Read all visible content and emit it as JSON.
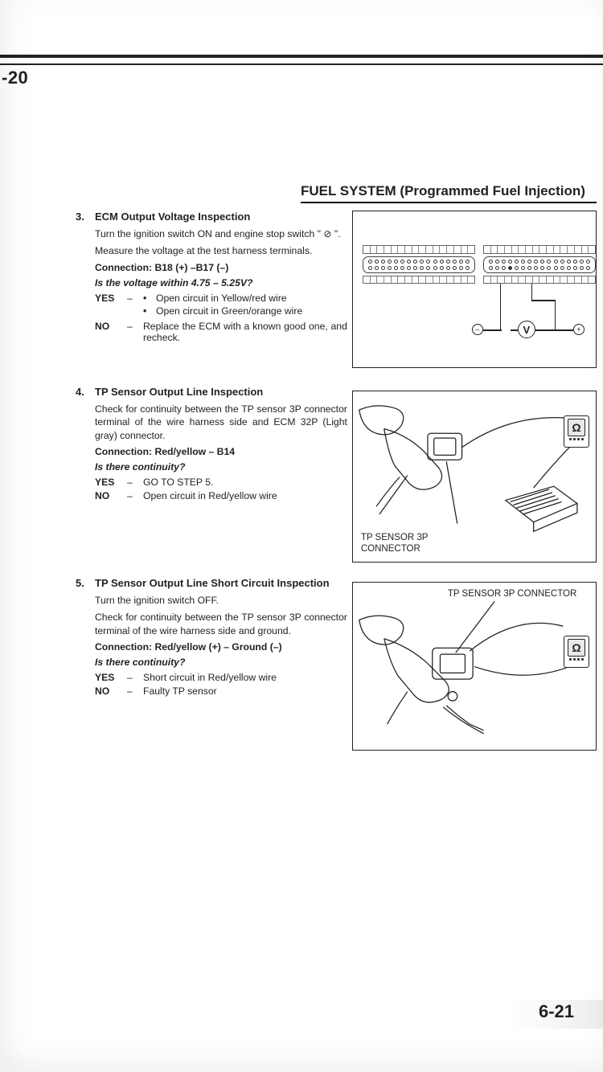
{
  "top_page_number_crop": "-20",
  "section_header": "FUEL SYSTEM (Programmed Fuel Injection)",
  "footer_page_number": "6-21",
  "steps": {
    "step3": {
      "number": "3.",
      "title": "ECM Output Voltage Inspection",
      "para1": "Turn the ignition switch ON and engine stop switch \" ⊘ \".",
      "para2": "Measure the voltage at the test harness terminals.",
      "connection": "Connection: B18 (+) –B17 (–)",
      "question": "Is the voltage within 4.75 – 5.25V?",
      "yes_bullet1": "Open circuit in Yellow/red wire",
      "yes_bullet2": "Open circuit in Green/orange wire",
      "no_text": "Replace the ECM with a known good one, and recheck."
    },
    "step4": {
      "number": "4.",
      "title": "TP Sensor Output Line Inspection",
      "para1": "Check for continuity between the TP sensor 3P connector terminal of the wire harness side and ECM 32P (Light gray) connector.",
      "connection": "Connection: Red/yellow – B14",
      "question": "Is there continuity?",
      "yes_text": "GO TO STEP 5.",
      "no_text": "Open circuit in Red/yellow wire",
      "diagram_label_line1": "TP SENSOR 3P",
      "diagram_label_line2": "CONNECTOR"
    },
    "step5": {
      "number": "5.",
      "title": "TP Sensor Output Line Short Circuit Inspection",
      "para1": "Turn the ignition switch OFF.",
      "para2": "Check for continuity between the TP sensor 3P connector terminal of the wire harness side and ground.",
      "connection": "Connection: Red/yellow (+) – Ground (–)",
      "question": "Is there continuity?",
      "yes_text": "Short circuit in Red/yellow wire",
      "no_text": "Faulty TP sensor",
      "diagram_label": "TP SENSOR 3P CONNECTOR"
    }
  },
  "diagram1": {
    "voltmeter_symbol": "V",
    "minus": "–",
    "plus": "+",
    "connector_pins_per_row": 16,
    "selected_pin_connector": "right",
    "selected_pin_row": 1,
    "selected_pin_col": 3
  },
  "meter_symbol": "Ω",
  "colors": {
    "text": "#222222",
    "rule": "#000000",
    "diagram_border": "#222222",
    "page_bg": "#ffffff"
  }
}
